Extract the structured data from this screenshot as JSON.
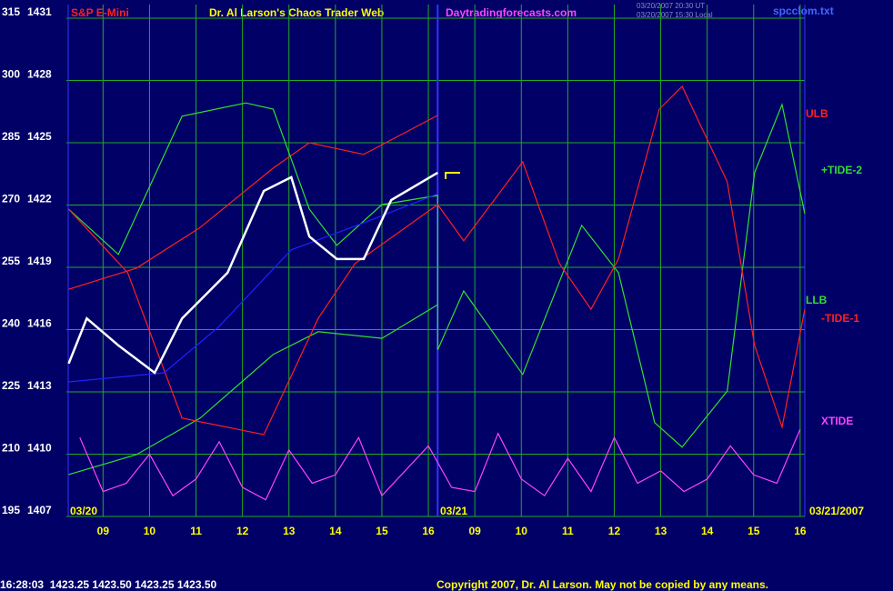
{
  "chart_data": {
    "type": "line",
    "title": "Dr. Al Larson's Chaos Trader Web",
    "symbol": "S&P E-Mini",
    "site": "Daytradingforecasts.com",
    "timestamp_ut": "03/20/2007 20:30 UT",
    "timestamp_local": "03/20/2007 15:30 Local",
    "file": "spcclom.txt",
    "quote": "16:28:03  1423.25 1423.50 1423.25 1423.50",
    "copyright": "Copyright 2007, Dr. Al Larson. May not be copied by any means.",
    "date_labels": [
      "03/20",
      "03/21",
      "03/21/2007"
    ],
    "xlim": [
      8.25,
      24.1
    ],
    "ylim": [
      195,
      315
    ],
    "y2lim": [
      1407,
      1431
    ],
    "yticks": [
      195,
      210,
      225,
      240,
      255,
      270,
      285,
      300,
      315
    ],
    "y2ticks": [
      1407,
      1410,
      1413,
      1416,
      1419,
      1422,
      1425,
      1428,
      1431
    ],
    "xticks": [
      {
        "value": 9,
        "label": "09"
      },
      10,
      11,
      12,
      13,
      14,
      15,
      16,
      {
        "value": 17,
        "label": "09"
      },
      {
        "value": 18,
        "label": "10"
      },
      {
        "value": 19,
        "label": "11"
      },
      {
        "value": 20,
        "label": "12"
      },
      {
        "value": 21,
        "label": "13"
      },
      {
        "value": 22,
        "label": "14"
      },
      {
        "value": 23,
        "label": "15"
      },
      {
        "value": 24,
        "label": "16"
      }
    ],
    "day_break": 16.2,
    "grid": true,
    "series": [
      {
        "name": "ULB",
        "color": "#ff2020",
        "x": [
          8.26,
          9.72,
          11.09,
          12.66,
          13.44,
          14.61,
          16.2
        ],
        "values": [
          249.7,
          254.8,
          264.6,
          278.9,
          285.0,
          282.2,
          291.6
        ]
      },
      {
        "name": "+TIDE-2",
        "color": "#33dd33",
        "x": [
          8.26,
          9.33,
          10.7,
          12.07,
          12.66,
          13.44,
          14.03,
          15.0,
          16.2,
          16.2,
          16.76,
          18.03,
          19.3,
          20.09,
          20.87,
          21.46,
          22.43,
          23.02,
          23.61,
          24.1
        ],
        "values": [
          269.0,
          258.1,
          291.4,
          294.6,
          293.1,
          269.0,
          260.3,
          270.1,
          272.3,
          235.1,
          249.3,
          229.2,
          265.1,
          253.7,
          217.6,
          211.7,
          225.2,
          277.8,
          294.2,
          267.9
        ]
      },
      {
        "name": "LLB",
        "color": "#33dd33",
        "x": [
          8.26,
          9.72,
          11.09,
          12.66,
          13.63,
          15.0,
          16.2
        ],
        "values": [
          205.1,
          209.9,
          218.7,
          234.0,
          239.5,
          237.9,
          246.0
        ]
      },
      {
        "name": "-TIDE-1",
        "color": "#ff2020",
        "x": [
          8.26,
          9.53,
          10.7,
          12.46,
          13.63,
          14.42,
          16.2,
          16.76,
          18.03,
          18.82,
          19.5,
          20.09,
          20.97,
          21.46,
          22.43,
          23.02,
          23.61,
          24.1
        ],
        "values": [
          269.0,
          253.7,
          218.7,
          214.7,
          242.7,
          255.9,
          270.1,
          261.4,
          280.4,
          255.9,
          244.9,
          257.0,
          293.1,
          298.6,
          275.6,
          236.2,
          216.5,
          244.9
        ]
      },
      {
        "name": "XTIDE",
        "color": "#ff44ff",
        "x": [
          8.5,
          9.0,
          9.5,
          10.0,
          10.5,
          11.0,
          11.5,
          12.0,
          12.5,
          13.0,
          13.5,
          14.0,
          14.5,
          15.0,
          15.5,
          16.0,
          16.5,
          17.0,
          17.5,
          18.0,
          18.5,
          19.0,
          19.5,
          20.0,
          20.5,
          21.0,
          21.5,
          22.0,
          22.5,
          23.0,
          23.5,
          24.0
        ],
        "values": [
          214,
          201,
          203,
          210,
          200,
          204,
          213,
          202,
          199,
          211,
          203,
          205,
          214,
          200,
          206,
          212,
          202,
          201,
          215,
          204,
          200,
          209,
          201,
          214,
          203,
          206,
          201,
          204,
          212,
          205,
          203,
          216
        ]
      },
      {
        "color": "#2020ff",
        "x": [
          8.26,
          10.31,
          11.48,
          13.05,
          14.61,
          16.2
        ],
        "values": [
          227.4,
          229.6,
          240.6,
          259.2,
          265.7,
          272.7
        ]
      },
      {
        "color": "#ffffff",
        "x": [
          8.26,
          8.65,
          9.33,
          10.11,
          10.7,
          11.68,
          12.46,
          13.05,
          13.44,
          14.03,
          14.61,
          15.2,
          16.2
        ],
        "values": [
          231.8,
          242.7,
          236.2,
          229.6,
          242.7,
          253.7,
          273.4,
          276.7,
          262.4,
          257.0,
          257.0,
          271.2,
          277.8
        ]
      }
    ]
  }
}
